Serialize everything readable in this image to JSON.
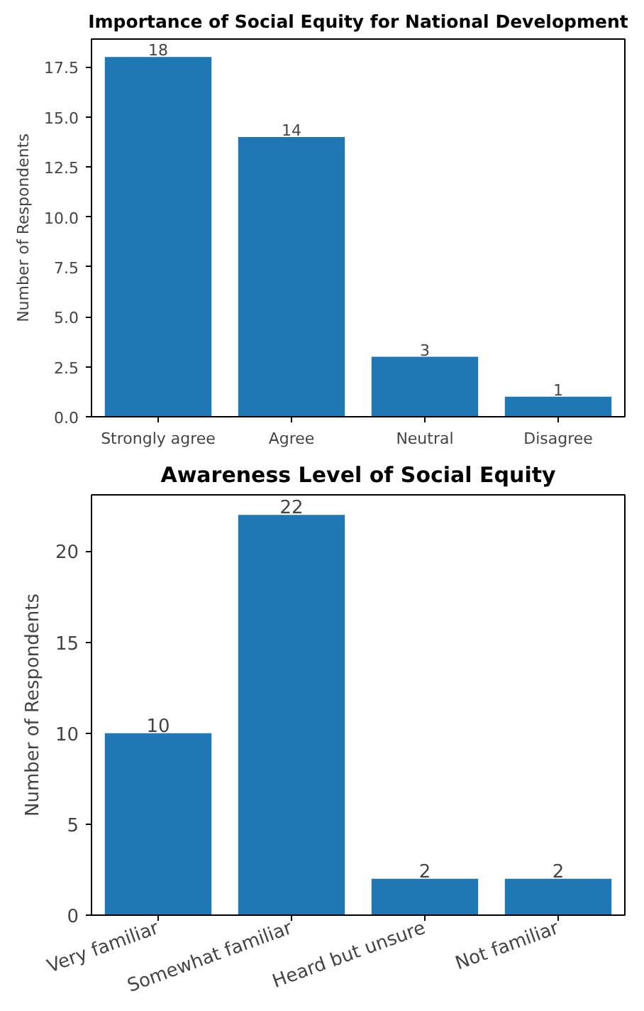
{
  "chart_data": [
    {
      "type": "bar",
      "title": "Importance of Social Equity for National Development",
      "ylabel": "Number of Respondents",
      "categories": [
        "Strongly agree",
        "Agree",
        "Neutral",
        "Disagree"
      ],
      "values": [
        18,
        14,
        3,
        1
      ],
      "color": "#1f77b4",
      "ylim": [
        0,
        18.9
      ],
      "yticks": [
        {
          "value": 0,
          "label": "0.0"
        },
        {
          "value": 2.5,
          "label": "2.5"
        },
        {
          "value": 5,
          "label": "5.0"
        },
        {
          "value": 7.5,
          "label": "7.5"
        },
        {
          "value": 10,
          "label": "10.0"
        },
        {
          "value": 12.5,
          "label": "12.5"
        },
        {
          "value": 15,
          "label": "15.0"
        },
        {
          "value": 17.5,
          "label": "17.5"
        }
      ],
      "data_labels": true,
      "grid": false
    },
    {
      "type": "bar",
      "title": "Awareness Level of Social Equity",
      "ylabel": "Number of Respondents",
      "categories": [
        "Very familiar",
        "Somewhat familiar",
        "Heard but unsure",
        "Not familiar"
      ],
      "values": [
        10,
        22,
        2,
        2
      ],
      "color": "#1f77b4",
      "ylim": [
        0,
        23.1
      ],
      "yticks": [
        0,
        5,
        10,
        15,
        20
      ],
      "data_labels": true,
      "grid": false
    }
  ]
}
